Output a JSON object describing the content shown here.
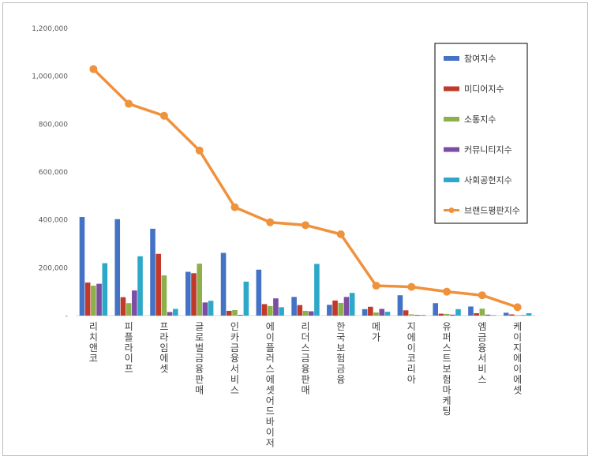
{
  "chart_data": {
    "type": "bar",
    "categories": [
      "리치앤코",
      "피플라이프",
      "프라임에셋",
      "글로벌금융판매",
      "인카금융서비스",
      "에이플러스에셋어드바이저",
      "리더스금융판매",
      "한국보험금융",
      "메가",
      "지에이코리아",
      "유퍼스트보험마케팅",
      "엠금융서비스",
      "케이지에이에셋"
    ],
    "ylim": [
      0,
      1200000
    ],
    "yticks": [
      "-",
      "200,000",
      "400,000",
      "600,000",
      "800,000",
      "1,000,000",
      "1,200,000"
    ],
    "ytick_values": [
      0,
      200000,
      400000,
      600000,
      800000,
      1000000,
      1200000
    ],
    "grid": false,
    "legend_position": "right",
    "series": [
      {
        "name": "참여지수",
        "color": "#4472C4",
        "values": [
          412000,
          403000,
          363000,
          183000,
          262000,
          192000,
          78000,
          45000,
          27000,
          85000,
          52000,
          38000,
          12000
        ]
      },
      {
        "name": "미디어지수",
        "color": "#C0392B",
        "values": [
          138000,
          77000,
          258000,
          177000,
          20000,
          48000,
          44000,
          63000,
          37000,
          22000,
          8000,
          10000,
          5000
        ]
      },
      {
        "name": "소통지수",
        "color": "#8DB04A",
        "values": [
          125000,
          52000,
          168000,
          217000,
          23000,
          40000,
          20000,
          53000,
          13000,
          5000,
          7000,
          29000,
          2000
        ]
      },
      {
        "name": "커뮤니티지수",
        "color": "#7B4EA3",
        "values": [
          133000,
          105000,
          15000,
          55000,
          3000,
          72000,
          18000,
          78000,
          28000,
          3000,
          4000,
          4000,
          2000
        ]
      },
      {
        "name": "사회공헌지수",
        "color": "#2EA8C9",
        "values": [
          219000,
          248000,
          28000,
          62000,
          142000,
          35000,
          216000,
          95000,
          16000,
          3000,
          27000,
          2000,
          10000
        ]
      }
    ],
    "line_series": {
      "name": "브랜드평판지수",
      "color": "#F0913C",
      "values": [
        1030000,
        885000,
        835000,
        690000,
        453000,
        390000,
        378000,
        340000,
        125000,
        120000,
        100000,
        85000,
        35000
      ]
    }
  }
}
